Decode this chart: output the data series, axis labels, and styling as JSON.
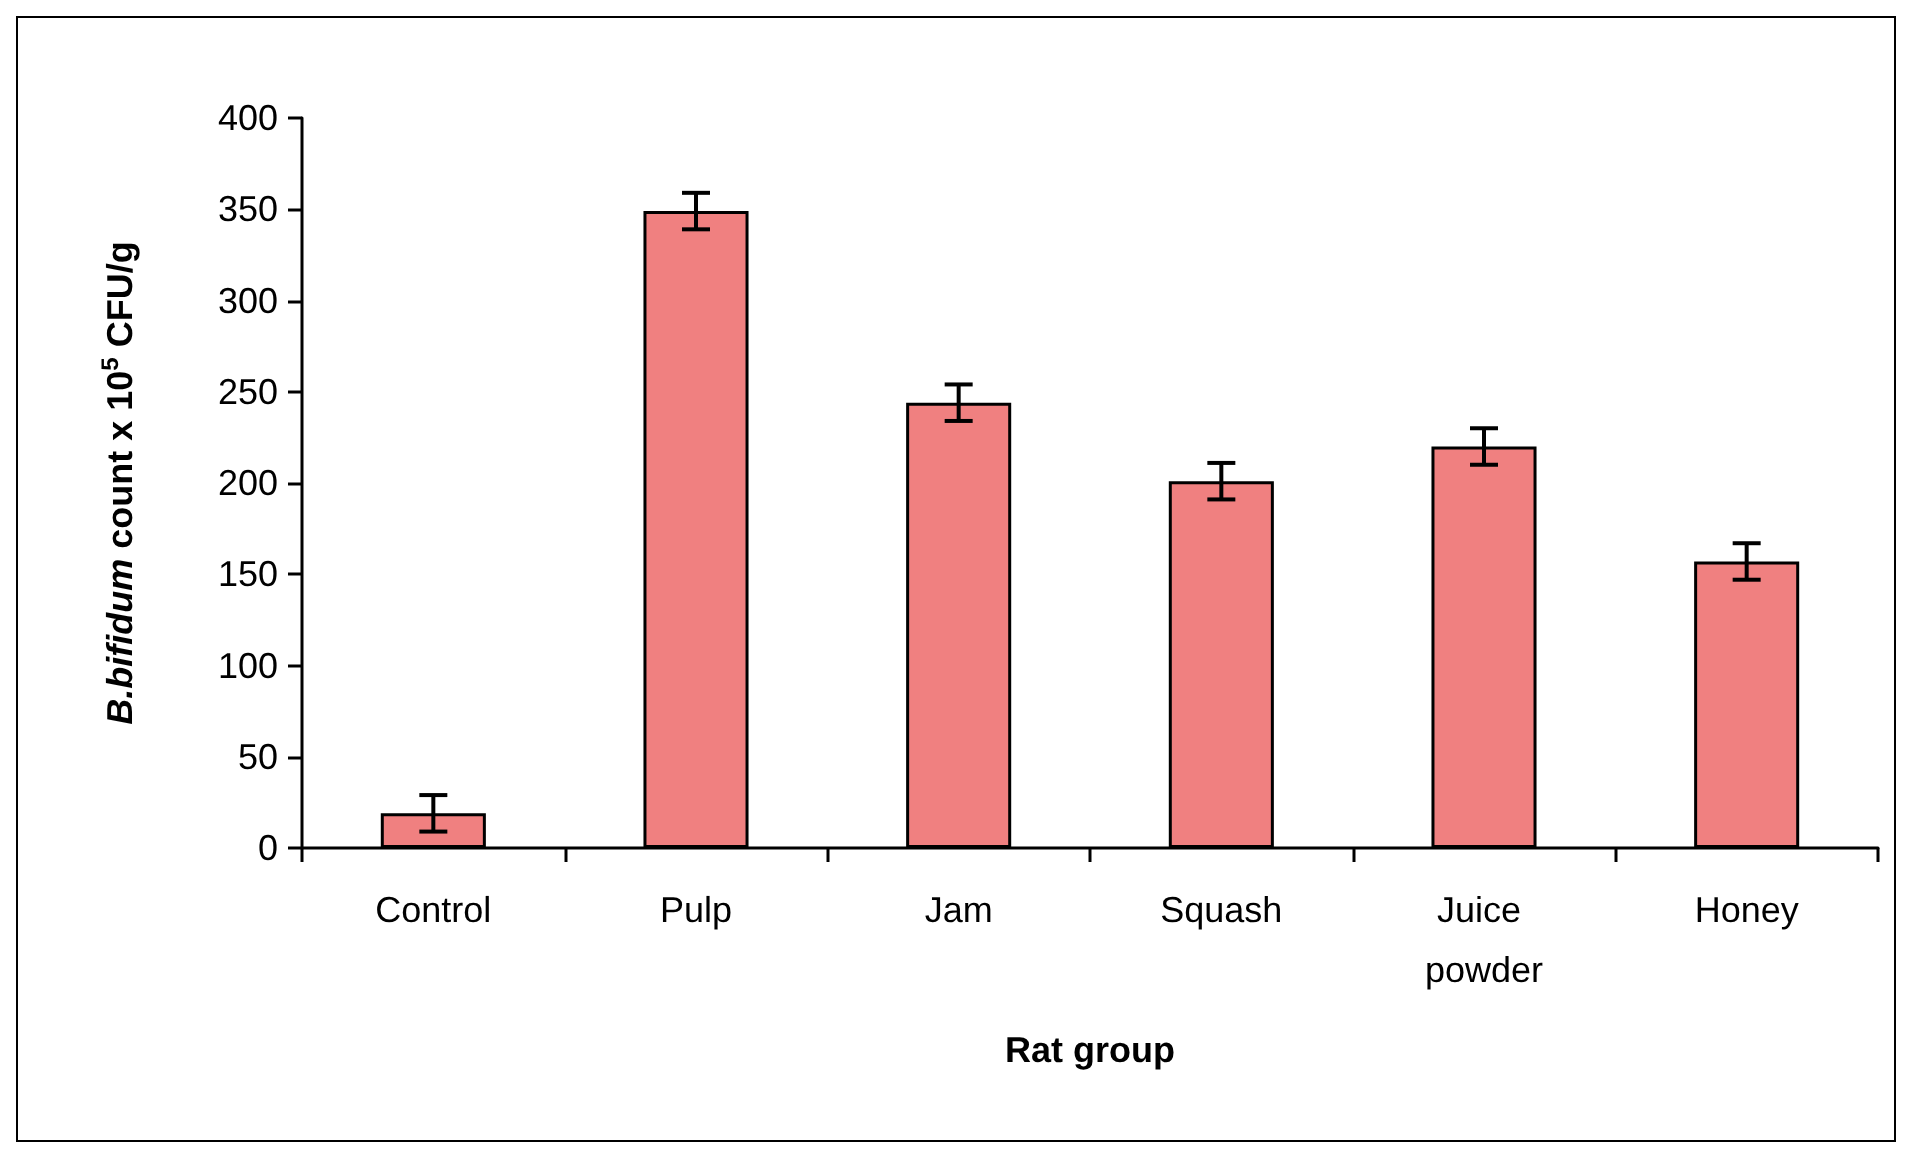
{
  "chart_data": {
    "type": "bar",
    "xlabel": "Rat group",
    "ylabel": "B.bifidum count x 10$^{5}$ CFU/g",
    "categories": [
      "Control",
      "Pulp",
      "Jam",
      "Squash",
      "Juice powder",
      "Honey"
    ],
    "values": [
      19,
      349,
      244,
      201,
      220,
      157
    ],
    "errors": [
      10,
      10,
      10,
      10,
      10,
      10
    ],
    "color": "#f08080",
    "ylim": [
      0,
      400
    ],
    "yticks": [
      0,
      50,
      100,
      150,
      200,
      250,
      300,
      350,
      400
    ],
    "grid": false
  }
}
